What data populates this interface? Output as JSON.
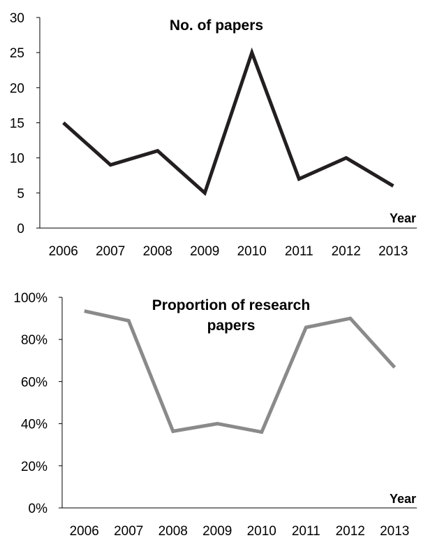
{
  "chart_data": [
    {
      "type": "line",
      "title": "No. of papers",
      "xlabel": "Year",
      "ylabel": "",
      "categories": [
        "2006",
        "2007",
        "2008",
        "2009",
        "2010",
        "2011",
        "2012",
        "2013"
      ],
      "series": [
        {
          "values": [
            15,
            9,
            11,
            5,
            25,
            7,
            10,
            6
          ],
          "color": "#231f20"
        }
      ],
      "ylim": [
        0,
        30
      ],
      "yticks": [
        "0",
        "5",
        "10",
        "15",
        "20",
        "25",
        "30"
      ],
      "grid": false,
      "legend": "none"
    },
    {
      "type": "line",
      "title_lines": [
        "Proportion of research",
        "papers"
      ],
      "xlabel": "Year",
      "ylabel": "",
      "categories": [
        "2006",
        "2007",
        "2008",
        "2009",
        "2010",
        "2011",
        "2012",
        "2013"
      ],
      "series": [
        {
          "values": [
            0.935,
            0.889,
            0.364,
            0.4,
            0.36,
            0.857,
            0.9,
            0.667
          ],
          "color": "#8a8a8a"
        }
      ],
      "ylim": [
        0,
        1
      ],
      "yticks": [
        "0%",
        "20%",
        "40%",
        "60%",
        "80%",
        "100%"
      ],
      "grid": false,
      "legend": "none"
    }
  ]
}
